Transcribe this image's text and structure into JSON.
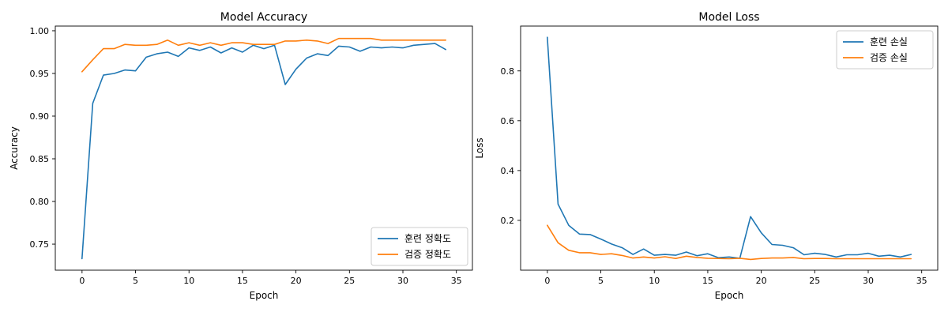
{
  "chart_data": [
    {
      "type": "line",
      "title": "Model Accuracy",
      "xlabel": "Epoch",
      "ylabel": "Accuracy",
      "xlim": [
        -2.5,
        36.5
      ],
      "ylim": [
        0.7195,
        1.0055
      ],
      "xticks": [
        0,
        5,
        10,
        15,
        20,
        25,
        30,
        35
      ],
      "yticks": [
        0.75,
        0.8,
        0.85,
        0.9,
        0.95,
        1.0
      ],
      "ytick_labels": [
        "0.75",
        "0.80",
        "0.85",
        "0.90",
        "0.95",
        "1.00"
      ],
      "legend_position": "lower-right",
      "x": [
        0,
        1,
        2,
        3,
        4,
        5,
        6,
        7,
        8,
        9,
        10,
        11,
        12,
        13,
        14,
        15,
        16,
        17,
        18,
        19,
        20,
        21,
        22,
        23,
        24,
        25,
        26,
        27,
        28,
        29,
        30,
        31,
        32,
        33,
        34
      ],
      "series": [
        {
          "name": "훈련 정확도",
          "color": "#1f77b4",
          "values": [
            0.733,
            0.915,
            0.948,
            0.95,
            0.954,
            0.953,
            0.969,
            0.973,
            0.975,
            0.97,
            0.98,
            0.977,
            0.981,
            0.974,
            0.98,
            0.975,
            0.983,
            0.979,
            0.983,
            0.937,
            0.955,
            0.968,
            0.973,
            0.971,
            0.982,
            0.981,
            0.976,
            0.981,
            0.98,
            0.981,
            0.98,
            0.983,
            0.984,
            0.985,
            0.978
          ]
        },
        {
          "name": "검증 정확도",
          "color": "#ff7f0e",
          "values": [
            0.952,
            0.966,
            0.979,
            0.979,
            0.984,
            0.983,
            0.983,
            0.984,
            0.989,
            0.983,
            0.986,
            0.983,
            0.986,
            0.983,
            0.986,
            0.986,
            0.984,
            0.984,
            0.984,
            0.988,
            0.988,
            0.989,
            0.988,
            0.985,
            0.991,
            0.991,
            0.991,
            0.991,
            0.989,
            0.989,
            0.989,
            0.989,
            0.989,
            0.989,
            0.989
          ]
        }
      ]
    },
    {
      "type": "line",
      "title": "Model Loss",
      "xlabel": "Epoch",
      "ylabel": "Loss",
      "xlim": [
        -2.5,
        36.5
      ],
      "ylim": [
        0.0,
        0.98
      ],
      "xticks": [
        0,
        5,
        10,
        15,
        20,
        25,
        30,
        35
      ],
      "yticks": [
        0.2,
        0.4,
        0.6,
        0.8
      ],
      "ytick_labels": [
        "0.2",
        "0.4",
        "0.6",
        "0.8"
      ],
      "legend_position": "upper-right",
      "x": [
        0,
        1,
        2,
        3,
        4,
        5,
        6,
        7,
        8,
        9,
        10,
        11,
        12,
        13,
        14,
        15,
        16,
        17,
        18,
        19,
        20,
        21,
        22,
        23,
        24,
        25,
        26,
        27,
        28,
        29,
        30,
        31,
        32,
        33,
        34
      ],
      "series": [
        {
          "name": "훈련 손실",
          "color": "#1f77b4",
          "values": [
            0.935,
            0.265,
            0.18,
            0.145,
            0.143,
            0.125,
            0.105,
            0.09,
            0.063,
            0.085,
            0.06,
            0.063,
            0.06,
            0.073,
            0.058,
            0.066,
            0.05,
            0.053,
            0.048,
            0.215,
            0.15,
            0.103,
            0.1,
            0.09,
            0.062,
            0.068,
            0.063,
            0.053,
            0.062,
            0.062,
            0.068,
            0.056,
            0.06,
            0.053,
            0.063
          ]
        },
        {
          "name": "검증 손실",
          "color": "#ff7f0e",
          "values": [
            0.18,
            0.11,
            0.08,
            0.07,
            0.07,
            0.063,
            0.066,
            0.059,
            0.049,
            0.053,
            0.049,
            0.054,
            0.047,
            0.056,
            0.051,
            0.048,
            0.047,
            0.046,
            0.048,
            0.043,
            0.047,
            0.049,
            0.049,
            0.051,
            0.046,
            0.047,
            0.047,
            0.046,
            0.046,
            0.046,
            0.046,
            0.046,
            0.046,
            0.046,
            0.046
          ]
        }
      ]
    }
  ]
}
